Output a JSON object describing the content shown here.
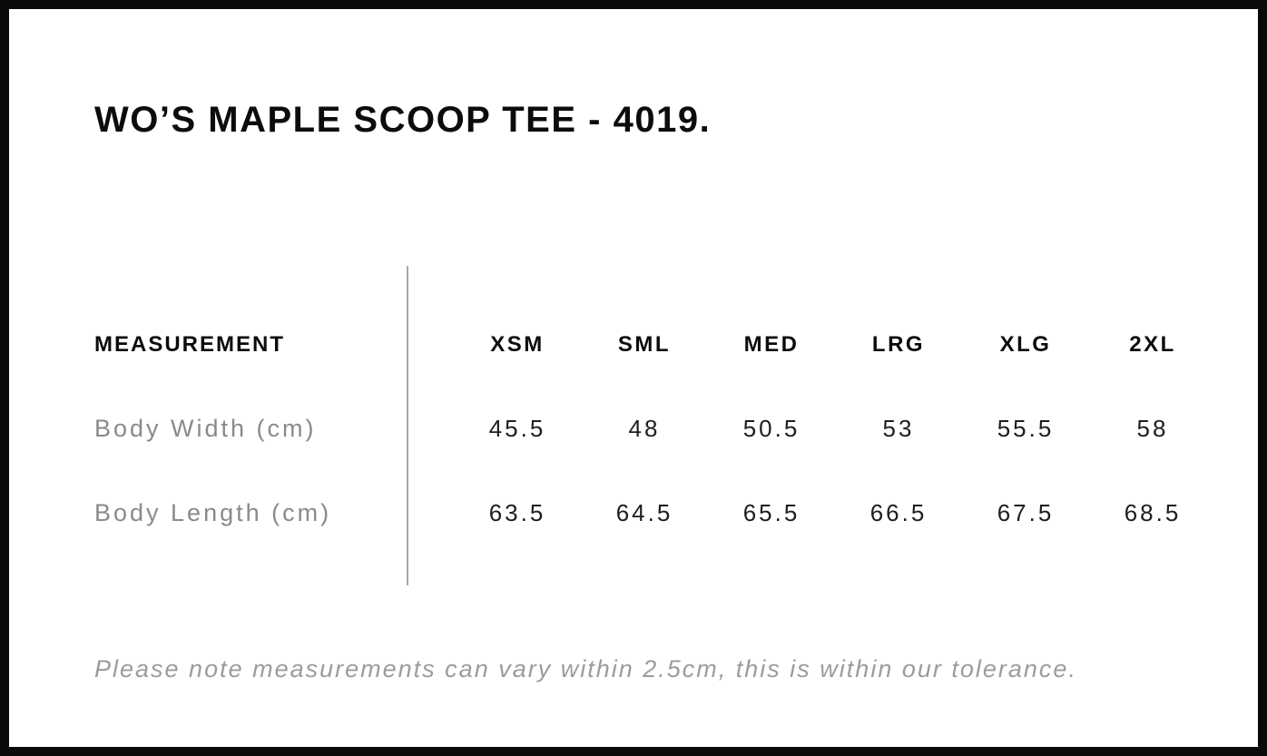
{
  "page": {
    "title": "WO’S MAPLE SCOOP TEE - 4019.",
    "footnote": "Please note measurements can vary within 2.5cm, this is within our tolerance."
  },
  "size_chart": {
    "label_header": "MEASUREMENT",
    "columns": [
      "XSM",
      "SML",
      "MED",
      "LRG",
      "XLG",
      "2XL"
    ],
    "rows": [
      {
        "label": "Body Width (cm)",
        "values": [
          "45.5",
          "48",
          "50.5",
          "53",
          "55.5",
          "58"
        ]
      },
      {
        "label": "Body Length (cm)",
        "values": [
          "63.5",
          "64.5",
          "65.5",
          "66.5",
          "67.5",
          "68.5"
        ]
      }
    ]
  },
  "colors": {
    "frame_border": "#0a0a0a",
    "heading_text": "#0c0c0c",
    "value_text": "#1e1e1e",
    "label_text": "#8a8a8a",
    "note_text": "#9c9c9c",
    "divider": "#a8a8a8",
    "background": "#ffffff"
  }
}
